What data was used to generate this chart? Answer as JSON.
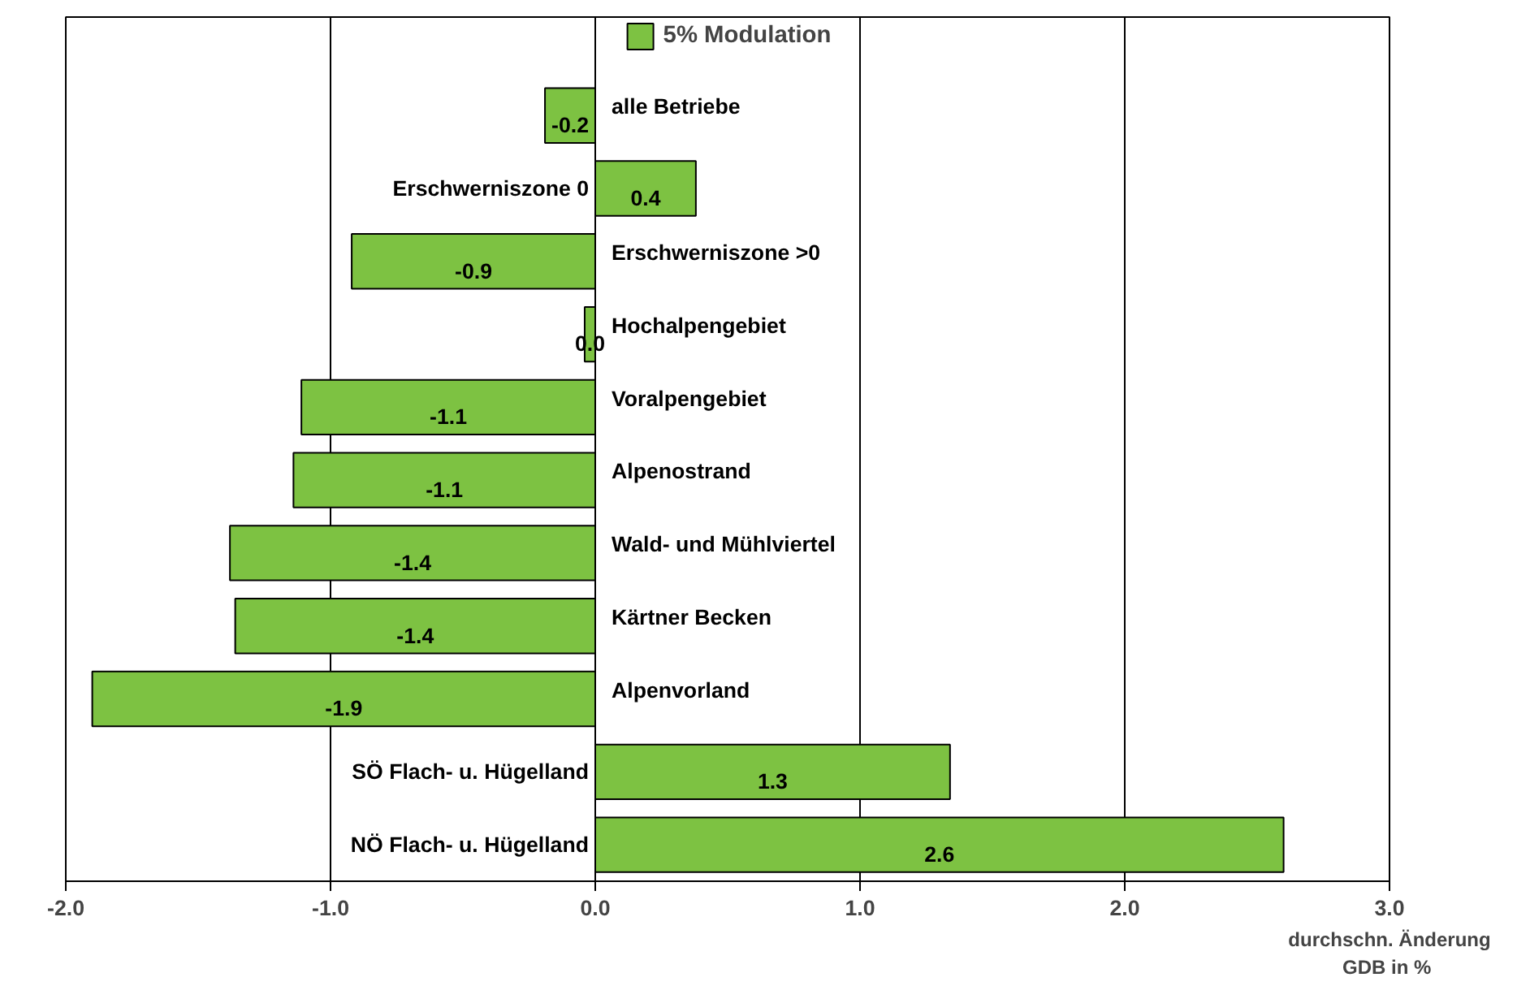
{
  "chart_data": {
    "type": "bar",
    "orientation": "horizontal",
    "categories": [
      "alle Betriebe",
      "Erschwerniszone 0",
      "Erschwerniszone >0",
      "Hochalpengebiet",
      "Voralpengebiet",
      "Alpenostrand",
      "Wald- und Mühlviertel",
      "Kärtner Becken",
      "Alpenvorland",
      "SÖ Flach- u. Hügelland",
      "NÖ Flach- u. Hügelland"
    ],
    "series": [
      {
        "name": "5% Modulation",
        "color": "#7dc242",
        "values": [
          -0.19,
          0.38,
          -0.92,
          -0.04,
          -1.11,
          -1.14,
          -1.38,
          -1.36,
          -1.9,
          1.34,
          2.6
        ],
        "value_labels": [
          "-0.2",
          "0.4",
          "-0.9",
          "0.0",
          "-1.1",
          "-1.1",
          "-1.4",
          "-1.4",
          "-1.9",
          "1.3",
          "2.6"
        ]
      }
    ],
    "xlim": [
      -2,
      3
    ],
    "xticks": [
      {
        "value": -2,
        "label": "-2.0"
      },
      {
        "value": -1,
        "label": "-1.0"
      },
      {
        "value": 0,
        "label": "0.0"
      },
      {
        "value": 1,
        "label": "1.0"
      },
      {
        "value": 2,
        "label": "2.0"
      },
      {
        "value": 3,
        "label": "3.0"
      }
    ],
    "xlabel": "durchschn. Änderung GDB  in %",
    "grid": "x",
    "legend": "top"
  }
}
